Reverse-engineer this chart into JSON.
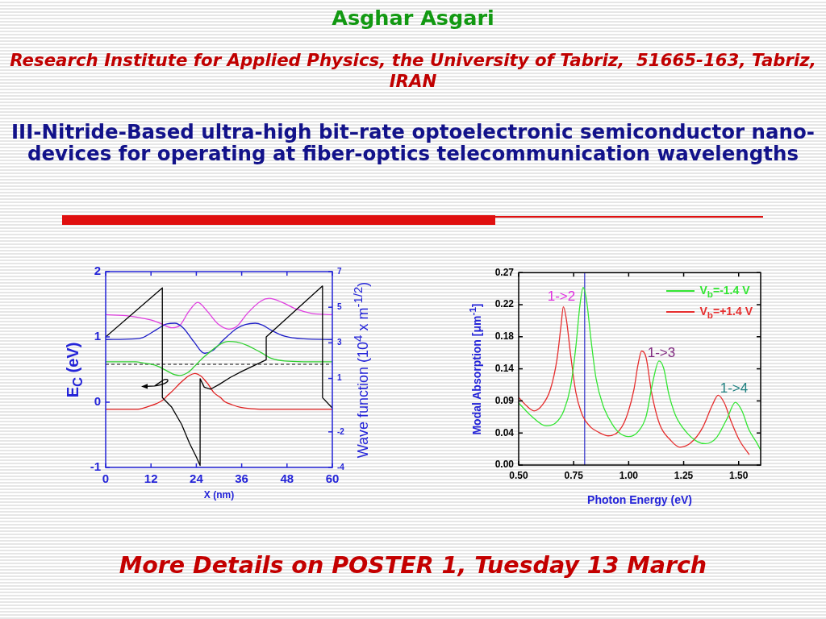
{
  "chart_data": [
    {
      "type": "other",
      "title": "Asghar Asgari",
      "subtitle": "Research Institute for Applied Physics, the University of Tabriz,  51665-163, Tabriz, IRAN",
      "annotations": [
        "III-Nitride-Based ultra-high bit–rate optoelectronic semiconductor nano-devices for operating at fiber-optics telecommunication wavelengths",
        "More Details on POSTER 1, Tuesday 13 March"
      ]
    },
    {
      "type": "line",
      "xlabel": "X (nm)",
      "ylabel": "E$_{C}$ (eV)",
      "y2label": "Wave function (10$^{4}$ x m$^{-1/2}$)",
      "xlim": [
        0,
        60
      ],
      "xticks": [
        0,
        12,
        24,
        36,
        48,
        60
      ],
      "ylim": [
        -1,
        2
      ],
      "yticks": [
        -1,
        0,
        1,
        2
      ],
      "y2lim": [
        -4,
        7
      ],
      "y2ticks": [
        -4,
        -2,
        1,
        3,
        5,
        7
      ],
      "ref_lines": [
        {
          "axis": "y",
          "value": 0.58,
          "color": "#808080",
          "line_style": "dashed"
        }
      ],
      "series": [
        {
          "color": "#000000",
          "x": [
            0,
            15,
            15,
            17.4,
            20.1,
            22.2,
            24,
            25,
            25,
            26.1,
            27.8,
            30,
            33,
            36,
            42.5,
            42.5,
            57.4,
            57.4,
            60
          ],
          "values": [
            1.0,
            1.75,
            0.07,
            -0.07,
            -0.34,
            -0.63,
            -0.84,
            -0.97,
            0.36,
            0.23,
            0.2,
            0.27,
            0.38,
            0.47,
            0.65,
            1.0,
            1.78,
            0.07,
            -0.09
          ]
        },
        {
          "color": "#e02020",
          "x": [
            0,
            8,
            11.6,
            13.5,
            15.1,
            16.5,
            18,
            19.5,
            20.8,
            22.2,
            23.6,
            25.2,
            26.2,
            27.2,
            28.6,
            30.4,
            31.5,
            33.5,
            35.7,
            38.5,
            41.4,
            45,
            60
          ],
          "values": [
            -0.11,
            -0.11,
            -0.06,
            -0.02,
            0.03,
            0.11,
            0.19,
            0.28,
            0.35,
            0.41,
            0.44,
            0.4,
            0.34,
            0.27,
            0.15,
            0.07,
            0.01,
            -0.04,
            -0.08,
            -0.1,
            -0.11,
            -0.11,
            -0.11
          ]
        },
        {
          "color": "#30d030",
          "x": [
            0,
            8,
            10,
            13.4,
            16.2,
            18.3,
            19.6,
            21.9,
            23.7,
            25.4,
            27.6,
            30.4,
            32.5,
            34.7,
            37.5,
            41.1,
            43.9,
            47.4,
            52.4,
            60
          ],
          "values": [
            0.62,
            0.62,
            0.6,
            0.56,
            0.48,
            0.42,
            0.41,
            0.46,
            0.56,
            0.66,
            0.77,
            0.89,
            0.93,
            0.92,
            0.87,
            0.76,
            0.67,
            0.63,
            0.62,
            0.62
          ]
        },
        {
          "color": "#2020c8",
          "x": [
            0,
            8,
            9.8,
            13.4,
            16.2,
            18.3,
            20.5,
            23.3,
            26.1,
            28.3,
            31.1,
            34.7,
            37,
            39.6,
            41.5,
            43.9,
            47.4,
            52.4,
            60
          ],
          "values": [
            0.96,
            0.97,
            0.99,
            1.11,
            1.2,
            1.21,
            1.14,
            0.93,
            0.75,
            0.79,
            0.95,
            1.13,
            1.19,
            1.21,
            1.18,
            1.1,
            1.01,
            0.97,
            0.96
          ]
        },
        {
          "color": "#e040e0",
          "x": [
            0,
            6.2,
            11.9,
            14.8,
            17.5,
            19.7,
            21.9,
            24.4,
            26.8,
            29.7,
            32.6,
            34.7,
            37.5,
            41.1,
            43.3,
            46.7,
            50.3,
            54.5,
            60
          ],
          "values": [
            1.34,
            1.32,
            1.26,
            1.2,
            1.14,
            1.18,
            1.38,
            1.53,
            1.4,
            1.2,
            1.12,
            1.16,
            1.36,
            1.55,
            1.59,
            1.53,
            1.43,
            1.36,
            1.34
          ]
        }
      ]
    },
    {
      "type": "line",
      "xlabel": "Photon Energy (eV)",
      "ylabel": "Modal Absorption  [μm$^{-1}$]",
      "xlim": [
        0.5,
        1.6
      ],
      "xticks": [
        {
          "value": 0.5,
          "label": "0.50"
        },
        0.75,
        {
          "value": 1,
          "label": "1.00"
        },
        1.25,
        {
          "value": 1.5,
          "label": "1.50"
        }
      ],
      "ylim": [
        0,
        0.27
      ],
      "yticks": [
        {
          "value": 0,
          "label": "0.00"
        },
        {
          "value": 0.045,
          "label": "0.04"
        },
        0.09,
        {
          "value": 0.135,
          "label": "0.14"
        },
        0.18,
        {
          "value": 0.225,
          "label": "0.22"
        },
        0.27
      ],
      "legend": "top right",
      "ref_lines": [
        {
          "axis": "x",
          "value": 0.8,
          "color": "#3030c8"
        }
      ],
      "annotations": [
        "1->2",
        "1->3",
        "1->4"
      ],
      "series": [
        {
          "name": "V$_{b}$=-1.4 V",
          "color": "#33e633",
          "x": [
            0.5,
            0.557,
            0.625,
            0.668,
            0.705,
            0.736,
            0.76,
            0.778,
            0.793,
            0.809,
            0.828,
            0.852,
            0.883,
            0.926,
            0.962,
            0.999,
            1.04,
            1.079,
            1.11,
            1.138,
            1.159,
            1.183,
            1.214,
            1.263,
            1.312,
            1.349,
            1.398,
            1.447,
            1.485,
            1.515,
            1.546,
            1.583,
            1.6
          ],
          "values": [
            0.087,
            0.069,
            0.055,
            0.059,
            0.076,
            0.11,
            0.166,
            0.223,
            0.249,
            0.23,
            0.178,
            0.121,
            0.084,
            0.057,
            0.044,
            0.04,
            0.046,
            0.068,
            0.117,
            0.146,
            0.136,
            0.099,
            0.069,
            0.046,
            0.033,
            0.03,
            0.038,
            0.065,
            0.088,
            0.076,
            0.05,
            0.031,
            0.021
          ]
        },
        {
          "name": "V$_{b}$=+1.4 V",
          "color": "#e62e2e",
          "x": [
            0.5,
            0.533,
            0.57,
            0.607,
            0.644,
            0.674,
            0.693,
            0.703,
            0.717,
            0.736,
            0.76,
            0.791,
            0.828,
            0.864,
            0.907,
            0.95,
            0.987,
            1.024,
            1.042,
            1.059,
            1.079,
            1.104,
            1.141,
            1.19,
            1.233,
            1.282,
            1.337,
            1.38,
            1.407,
            1.435,
            1.466,
            1.503,
            1.547
          ],
          "values": [
            0.095,
            0.084,
            0.076,
            0.084,
            0.106,
            0.148,
            0.197,
            0.222,
            0.204,
            0.155,
            0.102,
            0.069,
            0.053,
            0.046,
            0.041,
            0.046,
            0.065,
            0.106,
            0.14,
            0.16,
            0.151,
            0.102,
            0.057,
            0.035,
            0.025,
            0.031,
            0.053,
            0.084,
            0.098,
            0.087,
            0.061,
            0.035,
            0.015
          ]
        }
      ]
    }
  ]
}
